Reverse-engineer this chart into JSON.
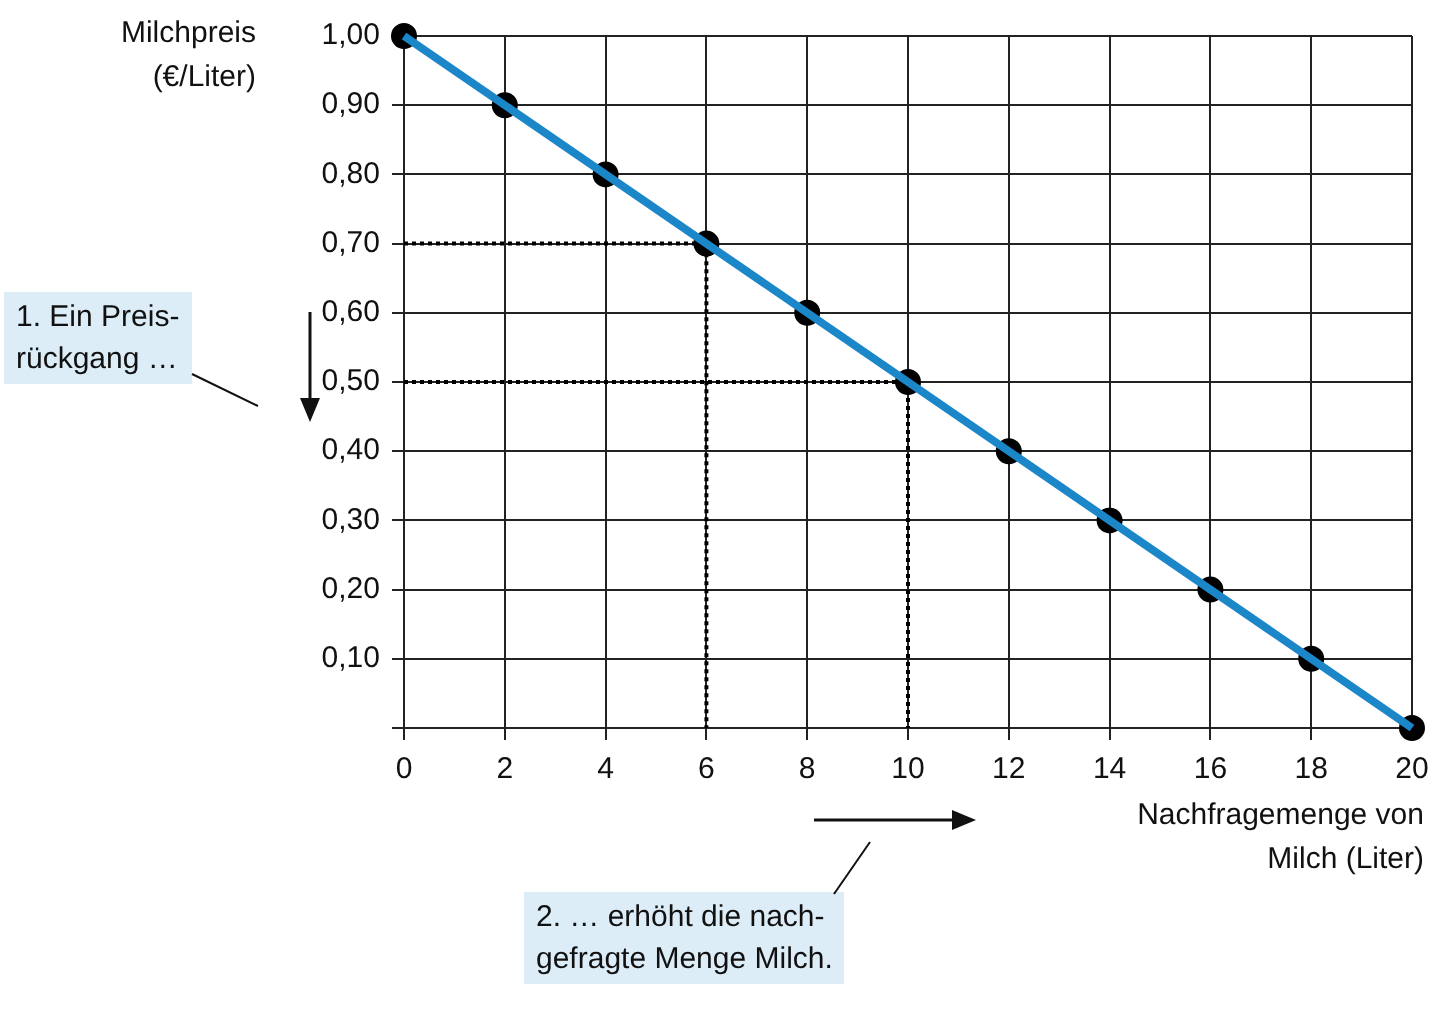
{
  "chart_data": {
    "type": "line",
    "xlabel": "Nachfragemenge von\nMilch (Liter)",
    "ylabel": "Milchpreis\n(€/Liter)",
    "xlim": [
      0,
      20
    ],
    "xticks": [
      0,
      2,
      4,
      6,
      8,
      10,
      12,
      14,
      16,
      18,
      20
    ],
    "ylim": [
      0,
      1.0
    ],
    "yticks": [
      {
        "value": 0,
        "label": null
      },
      {
        "value": 0.1,
        "label": "0,10"
      },
      {
        "value": 0.2,
        "label": "0,20"
      },
      {
        "value": 0.3,
        "label": "0,30"
      },
      {
        "value": 0.4,
        "label": "0,40"
      },
      {
        "value": 0.5,
        "label": "0,50"
      },
      {
        "value": 0.6,
        "label": "0,60"
      },
      {
        "value": 0.7,
        "label": "0,70"
      },
      {
        "value": 0.8,
        "label": "0,80"
      },
      {
        "value": 0.9,
        "label": "0,90"
      },
      {
        "value": 1.0,
        "label": "1,00"
      }
    ],
    "grid": true,
    "legend": false,
    "series": [
      {
        "color": "#1b87c9",
        "marker": "none",
        "line_style": "solid",
        "x": [
          0,
          20
        ],
        "values": [
          1.0,
          0
        ]
      },
      {
        "type": "scatter",
        "color": "#000000",
        "marker": "circle",
        "x": [
          0,
          2,
          4,
          6,
          8,
          10,
          12,
          14,
          16,
          18,
          20
        ],
        "values": [
          1.0,
          0.9,
          0.8,
          0.7,
          0.6,
          0.5,
          0.4,
          0.3,
          0.2,
          0.1,
          0
        ]
      },
      {
        "color": "#000000",
        "marker": "none",
        "line_style": "dotted",
        "x": [
          0,
          6,
          6
        ],
        "values": [
          0.7,
          0.7,
          0
        ]
      },
      {
        "color": "#000000",
        "marker": "none",
        "line_style": "dotted",
        "x": [
          0,
          10,
          10
        ],
        "values": [
          0.5,
          0.5,
          0
        ]
      }
    ],
    "annotations": [
      "1. Ein Preis-\nrückgang …",
      "2. … erhöht die nach-\ngefragte Menge Milch."
    ]
  }
}
